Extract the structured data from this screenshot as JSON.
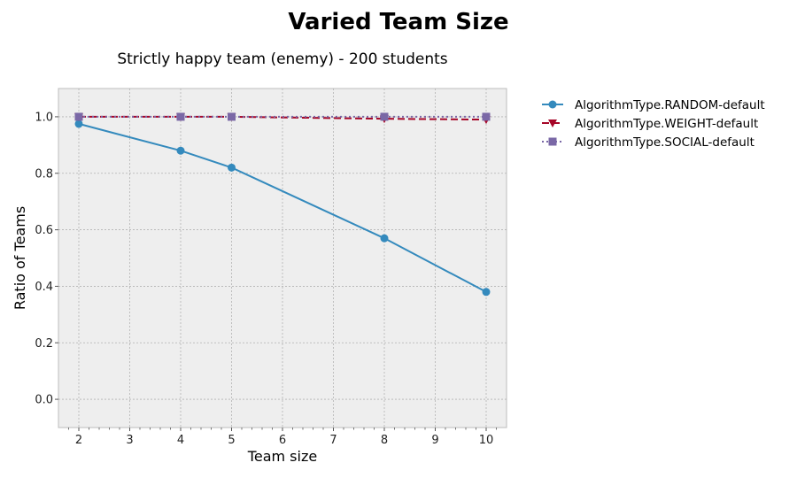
{
  "chart_data": {
    "type": "line",
    "title": "Varied Team Size",
    "subtitle": "Strictly happy team (enemy) - 200 students",
    "xlabel": "Team size",
    "ylabel": "Ratio of Teams",
    "xlim": [
      1.6,
      10.4
    ],
    "ylim": [
      -0.1,
      1.1
    ],
    "xticks": [
      2,
      3,
      4,
      5,
      6,
      7,
      8,
      9,
      10
    ],
    "yticks": [
      0.0,
      0.2,
      0.4,
      0.6,
      0.8,
      1.0
    ],
    "grid": true,
    "legend_position": "outside-right",
    "series": [
      {
        "name": "AlgorithmType.RANDOM-default",
        "color": "#348abd",
        "linestyle": "solid",
        "marker": "circle",
        "x": [
          2,
          4,
          5,
          8,
          10
        ],
        "y": [
          0.975,
          0.88,
          0.82,
          0.57,
          0.38
        ]
      },
      {
        "name": "AlgorithmType.WEIGHT-default",
        "color": "#a60628",
        "linestyle": "dashed",
        "marker": "triangle-down",
        "x": [
          2,
          4,
          5,
          8,
          10
        ],
        "y": [
          1.0,
          1.0,
          1.0,
          0.993,
          0.99
        ]
      },
      {
        "name": "AlgorithmType.SOCIAL-default",
        "color": "#7a68a6",
        "linestyle": "dotted",
        "marker": "square",
        "x": [
          2,
          4,
          5,
          8,
          10
        ],
        "y": [
          1.0,
          1.0,
          1.0,
          1.0,
          1.0
        ]
      }
    ]
  }
}
